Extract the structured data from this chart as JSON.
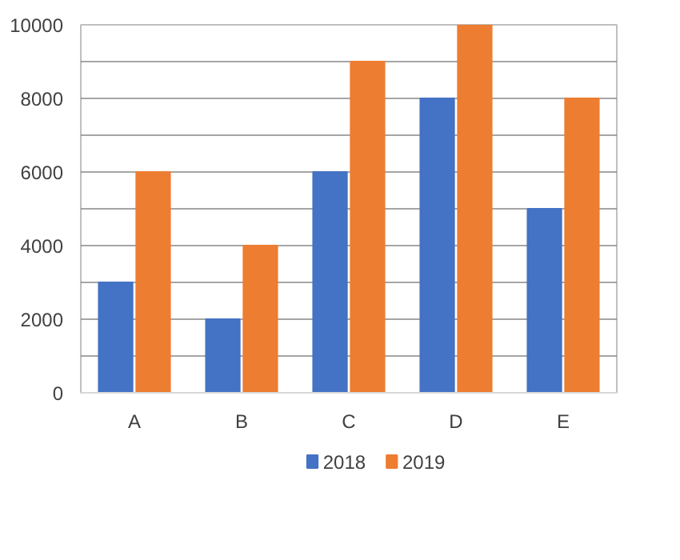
{
  "chart_data": {
    "type": "bar",
    "categories": [
      "A",
      "B",
      "C",
      "D",
      "E"
    ],
    "series": [
      {
        "name": "2018",
        "color": "#4472c4",
        "values": [
          3000,
          2000,
          6000,
          8000,
          5000
        ]
      },
      {
        "name": "2019",
        "color": "#ed7d31",
        "values": [
          6000,
          4000,
          9000,
          10000,
          8000
        ]
      }
    ],
    "ylim": [
      0,
      10000
    ],
    "yticks": [
      0,
      {
        "value": 1000,
        "label": null
      },
      2000,
      {
        "value": 3000,
        "label": null
      },
      4000,
      {
        "value": 5000,
        "label": null
      },
      6000,
      {
        "value": 7000,
        "label": null
      },
      8000,
      {
        "value": 9000,
        "label": null
      },
      10000
    ],
    "grid": "y",
    "legend": "bottom"
  }
}
